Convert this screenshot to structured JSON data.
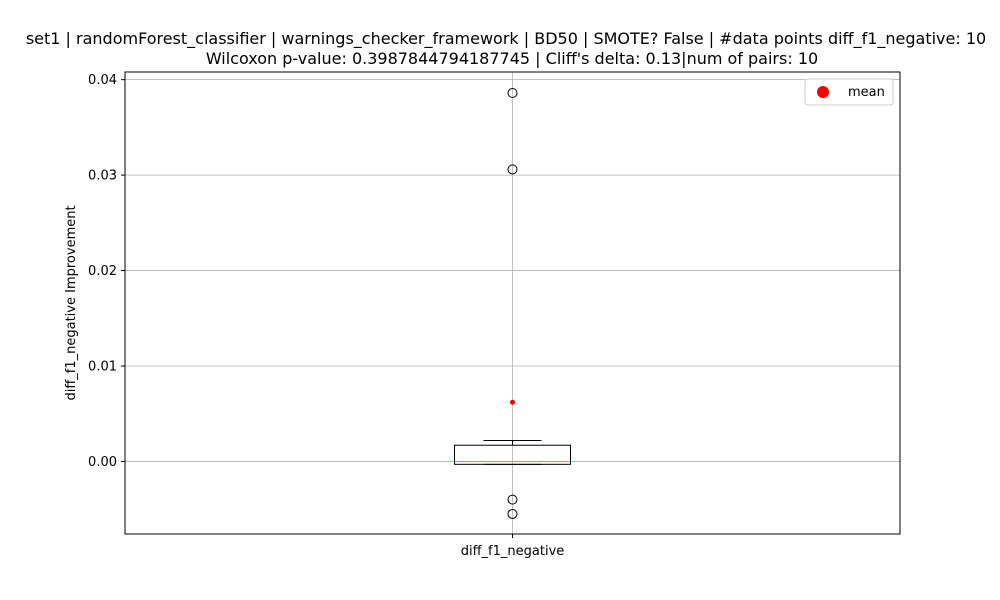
{
  "chart_data": {
    "type": "box",
    "title_line1": "set1 | randomForest_classifier | warnings_checker_framework | BD50 | SMOTE? False | #data points diff_f1_negative: 10",
    "title_line2": "Wilcoxon p-value: 0.3987844794187745 | Cliff's delta: 0.13|num of pairs: 10",
    "xlabel": "",
    "ylabel": "diff_f1_negative Improvement",
    "categories": [
      "diff_f1_negative"
    ],
    "ylim": [
      -0.0076,
      0.0408
    ],
    "yticks": [
      0.0,
      0.01,
      0.02,
      0.03,
      0.04
    ],
    "ytick_labels": [
      "0.00",
      "0.01",
      "0.02",
      "0.03",
      "0.04"
    ],
    "grid": true,
    "legend": {
      "position": "top-right",
      "entries": [
        "mean"
      ]
    },
    "box": {
      "q1": -0.0003,
      "median": 0.0,
      "q3": 0.0017,
      "whisker_low": -0.0003,
      "whisker_high": 0.0022,
      "mean": 0.0062,
      "outliers": [
        0.0386,
        0.0306,
        -0.004,
        -0.0055
      ]
    },
    "colors": {
      "box": "#000000",
      "median": "#ff7f0e",
      "mean": "#ff0000",
      "grid": "#b0b0b0"
    }
  }
}
